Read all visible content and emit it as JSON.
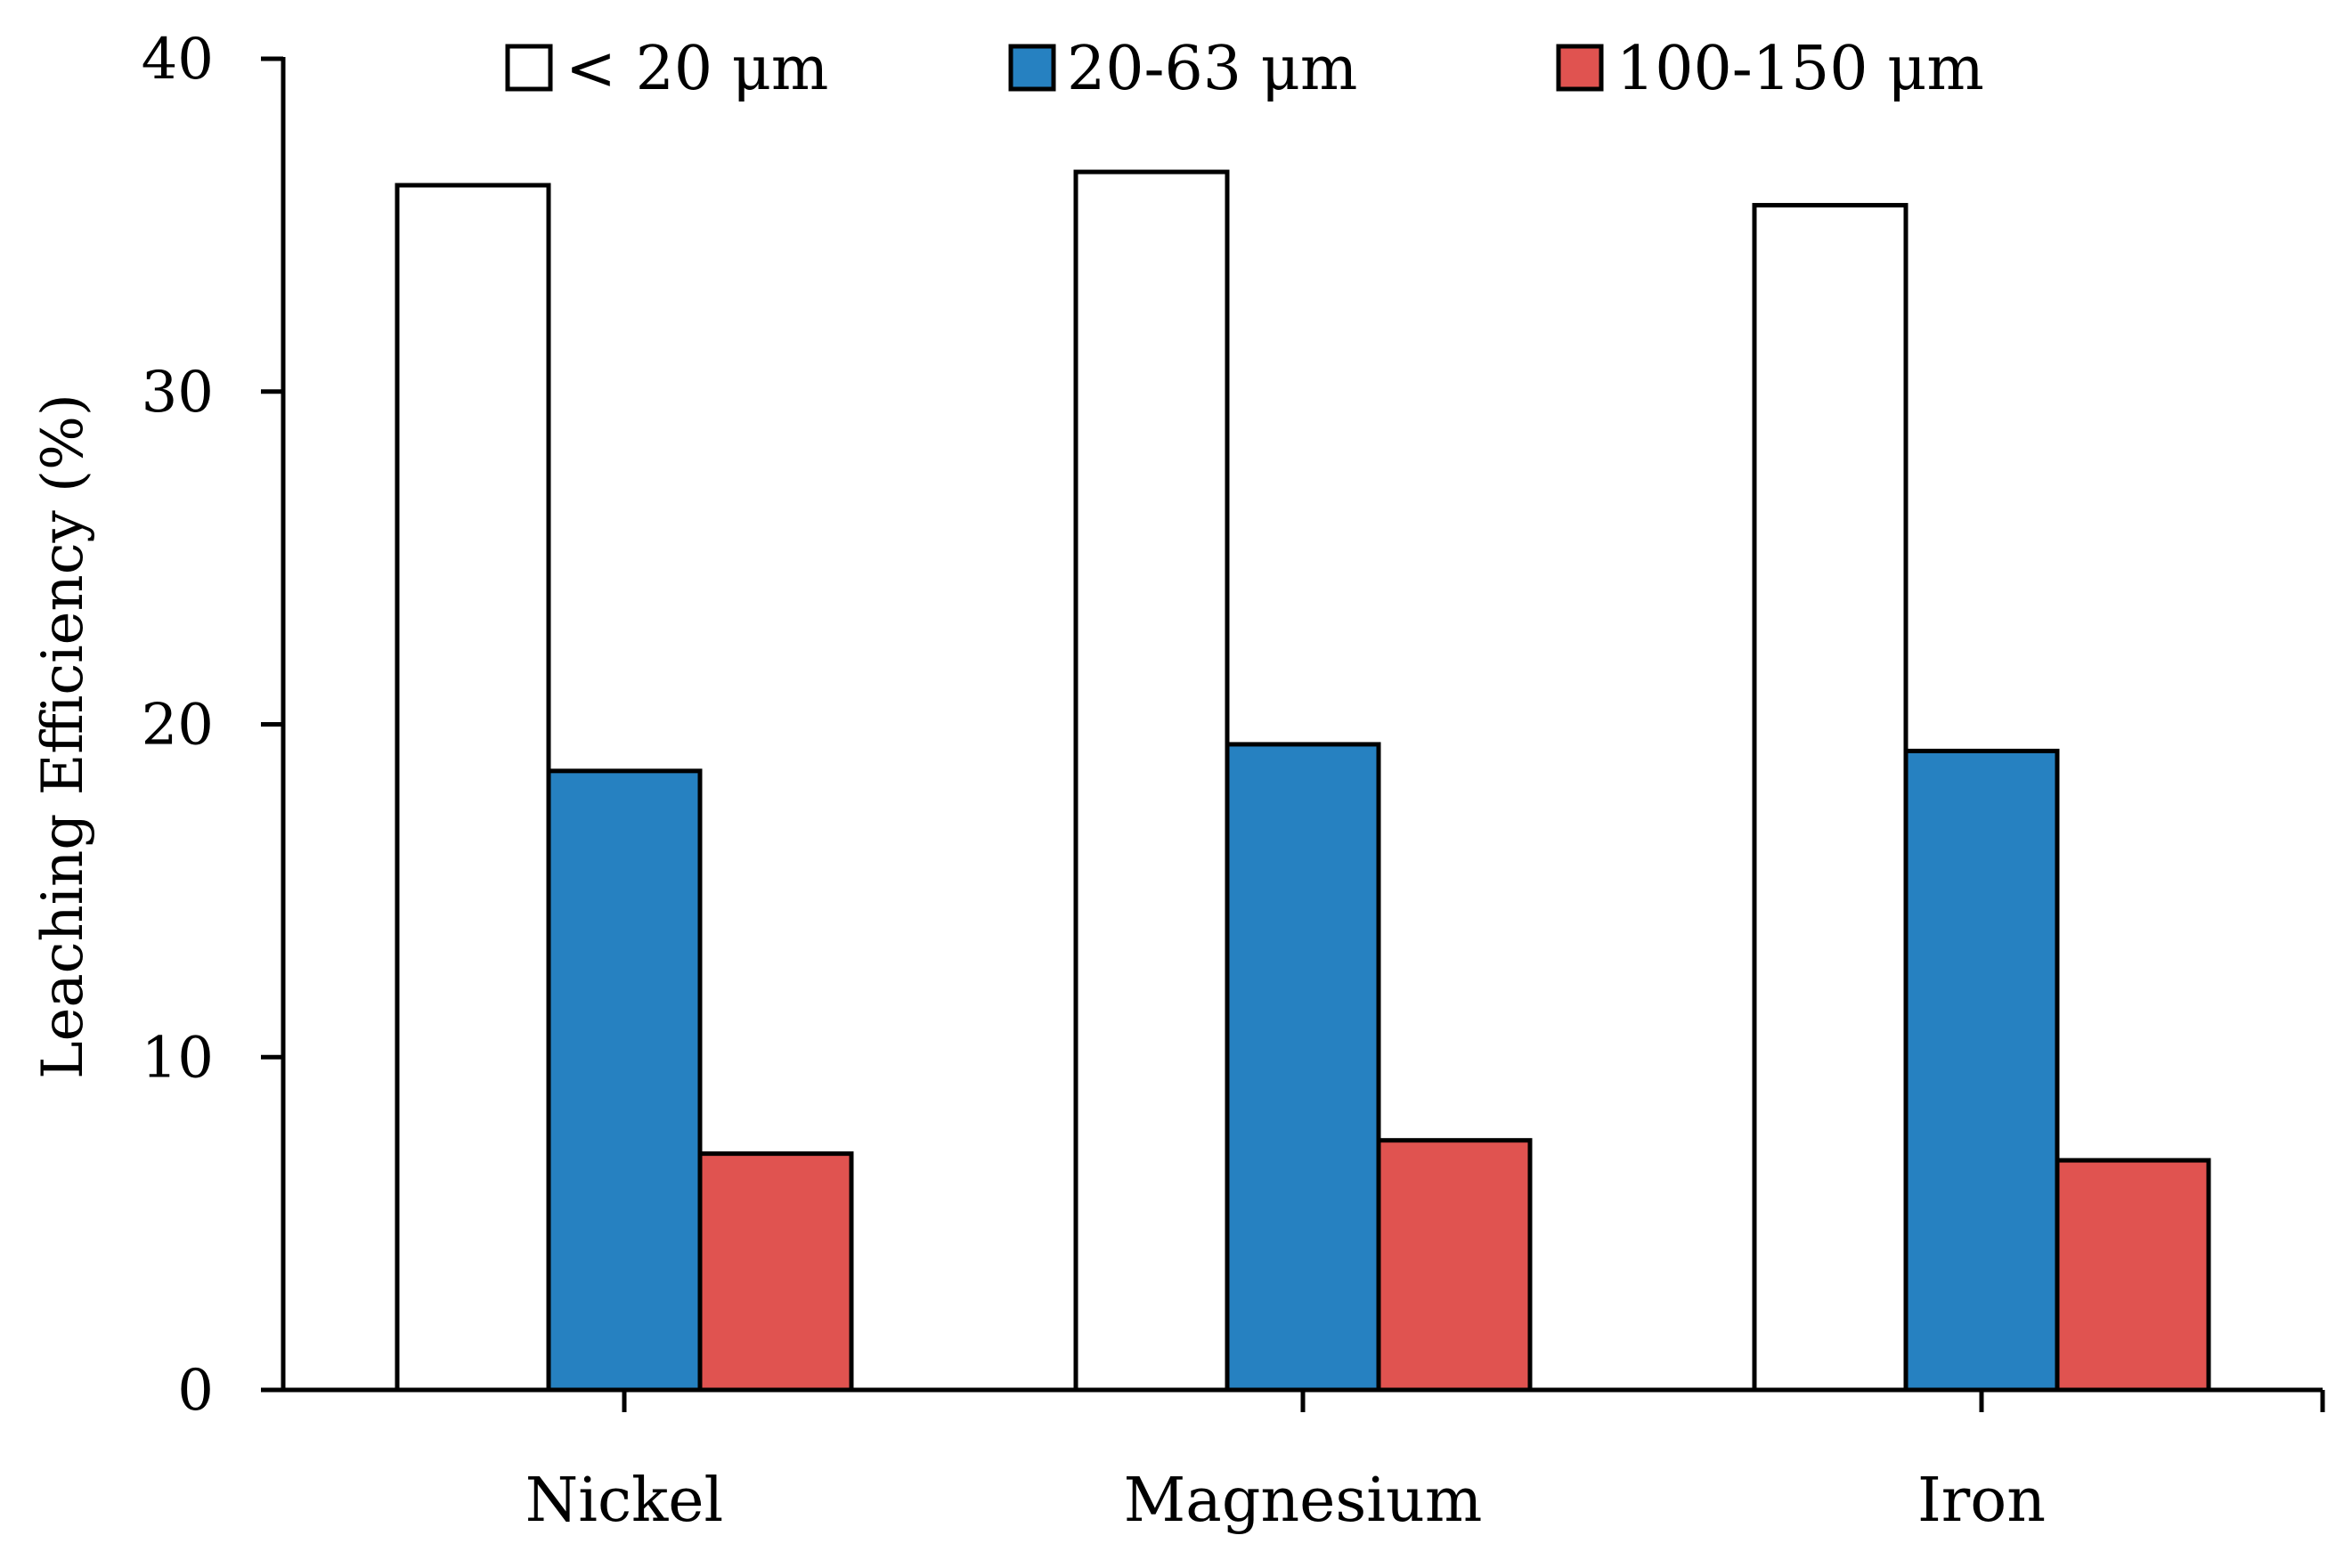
{
  "chart_data": {
    "type": "bar",
    "title": "",
    "xlabel": "",
    "ylabel": "Leaching Efficiency (%)",
    "categories": [
      "Nickel",
      "Magnesium",
      "Iron"
    ],
    "series": [
      {
        "name": "< 20 μm",
        "color": "#ffffff",
        "values": [
          36.2,
          36.6,
          35.6
        ]
      },
      {
        "name": "20-63 μm",
        "color": "#2681c1",
        "values": [
          18.6,
          19.4,
          19.2
        ]
      },
      {
        "name": "100-150 μm",
        "color": "#e05350",
        "values": [
          7.1,
          7.5,
          6.9
        ]
      }
    ],
    "ylim": [
      0,
      40
    ],
    "yticks": [
      "0",
      "10",
      "20",
      "30",
      "40"
    ],
    "grid": false,
    "legend": "top"
  }
}
